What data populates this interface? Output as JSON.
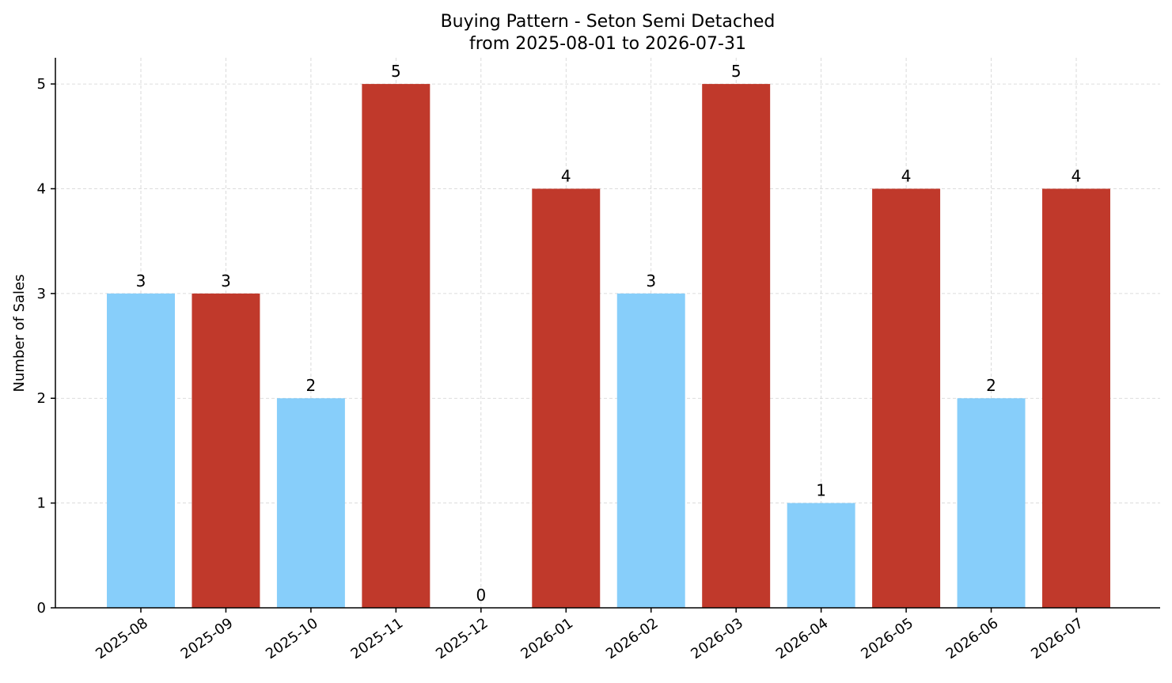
{
  "chart_data": {
    "type": "bar",
    "title": "Buying Pattern - Seton Semi Detached",
    "subtitle": "from 2025-08-01 to 2026-07-31",
    "xlabel": "",
    "ylabel": "Number of Sales",
    "categories": [
      "2025-08",
      "2025-09",
      "2025-10",
      "2025-11",
      "2025-12",
      "2026-01",
      "2026-02",
      "2026-03",
      "2026-04",
      "2026-05",
      "2026-06",
      "2026-07"
    ],
    "values": [
      3,
      3,
      2,
      5,
      0,
      4,
      3,
      5,
      1,
      4,
      2,
      4
    ],
    "bar_colors": [
      "#87CEFA",
      "#C0392B",
      "#87CEFA",
      "#C0392B",
      "#87CEFA",
      "#C0392B",
      "#87CEFA",
      "#C0392B",
      "#87CEFA",
      "#C0392B",
      "#87CEFA",
      "#C0392B"
    ],
    "ylim": [
      0,
      5.25
    ],
    "yticks": [
      0,
      1,
      2,
      3,
      4,
      5
    ],
    "grid": true,
    "legend": "none",
    "x_tick_rotation_deg": -35
  }
}
